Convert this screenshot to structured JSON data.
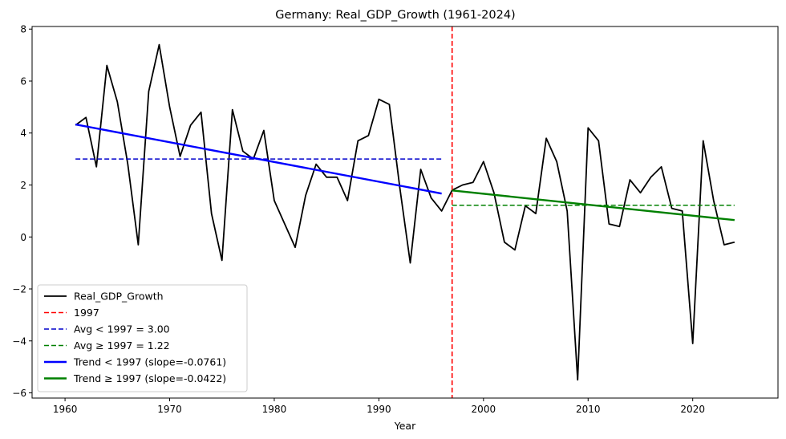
{
  "chart_data": {
    "type": "line",
    "title": "Germany: Real_GDP_Growth (1961-2024)",
    "xlabel": "Year",
    "ylabel": "",
    "xlim": [
      1956.85,
      2028.15
    ],
    "ylim": [
      -6.2,
      8.1
    ],
    "x_ticks": [
      1960,
      1970,
      1980,
      1990,
      2000,
      2010,
      2020
    ],
    "y_ticks": [
      -6,
      -4,
      -2,
      0,
      2,
      4,
      6,
      8
    ],
    "grid": false,
    "legend_position": "lower-left",
    "break_year": 1997,
    "series": [
      {
        "name": "Real_GDP_Growth",
        "color": "#000000",
        "style": "solid",
        "x": [
          1961,
          1962,
          1963,
          1964,
          1965,
          1966,
          1967,
          1968,
          1969,
          1970,
          1971,
          1972,
          1973,
          1974,
          1975,
          1976,
          1977,
          1978,
          1979,
          1980,
          1981,
          1982,
          1983,
          1984,
          1985,
          1986,
          1987,
          1988,
          1989,
          1990,
          1991,
          1992,
          1993,
          1994,
          1995,
          1996,
          1997,
          1998,
          1999,
          2000,
          2001,
          2002,
          2003,
          2004,
          2005,
          2006,
          2007,
          2008,
          2009,
          2010,
          2011,
          2012,
          2013,
          2014,
          2015,
          2016,
          2017,
          2018,
          2019,
          2020,
          2021,
          2022,
          2023,
          2024
        ],
        "values": [
          4.3,
          4.6,
          2.7,
          6.6,
          5.2,
          2.8,
          -0.3,
          5.6,
          7.4,
          5.0,
          3.1,
          4.3,
          4.8,
          0.9,
          -0.9,
          4.9,
          3.3,
          3.0,
          4.1,
          1.4,
          0.5,
          -0.4,
          1.6,
          2.8,
          2.3,
          2.3,
          1.4,
          3.7,
          3.9,
          5.3,
          5.1,
          1.9,
          -1.0,
          2.6,
          1.5,
          1.0,
          1.8,
          2.0,
          2.1,
          2.9,
          1.7,
          -0.2,
          -0.5,
          1.2,
          0.9,
          3.8,
          2.9,
          1.0,
          -5.5,
          4.2,
          3.7,
          0.5,
          0.4,
          2.2,
          1.7,
          2.3,
          2.7,
          1.1,
          1.0,
          -4.1,
          3.7,
          1.4,
          -0.3,
          -0.2
        ]
      }
    ],
    "reference_lines": [
      {
        "name": "1997",
        "color": "#ff0000",
        "style": "dashed",
        "orientation": "vertical",
        "x": 1997
      },
      {
        "name": "Avg < 1997 = 3.00",
        "color": "#0000cc",
        "style": "dashed",
        "orientation": "horizontal",
        "x": [
          1961,
          1996
        ],
        "y": 3.0
      },
      {
        "name": "Avg ≥ 1997 = 1.22",
        "color": "#008000",
        "style": "dashed",
        "orientation": "horizontal",
        "x": [
          1997,
          2024
        ],
        "y": 1.22
      }
    ],
    "trend_lines": [
      {
        "name": "Trend < 1997 (slope=-0.0761)",
        "color": "#0000ff",
        "style": "solid",
        "slope": -0.0761,
        "x": [
          1961,
          1996
        ],
        "y": [
          4.33,
          1.67
        ]
      },
      {
        "name": "Trend ≥ 1997 (slope=-0.0422)",
        "color": "#008000",
        "style": "solid",
        "slope": -0.0422,
        "x": [
          1997,
          2024
        ],
        "y": [
          1.79,
          0.65
        ]
      }
    ],
    "legend": [
      {
        "label": "Real_GDP_Growth",
        "color": "#000000",
        "style": "solid"
      },
      {
        "label": "1997",
        "color": "#ff0000",
        "style": "dashed"
      },
      {
        "label": "Avg < 1997 = 3.00",
        "color": "#0000cc",
        "style": "dashed"
      },
      {
        "label": "Avg ≥ 1997 = 1.22",
        "color": "#008000",
        "style": "dashed"
      },
      {
        "label": "Trend < 1997 (slope=-0.0761)",
        "color": "#0000ff",
        "style": "solid-thick"
      },
      {
        "label": "Trend ≥ 1997 (slope=-0.0422)",
        "color": "#008000",
        "style": "solid-thick"
      }
    ]
  }
}
